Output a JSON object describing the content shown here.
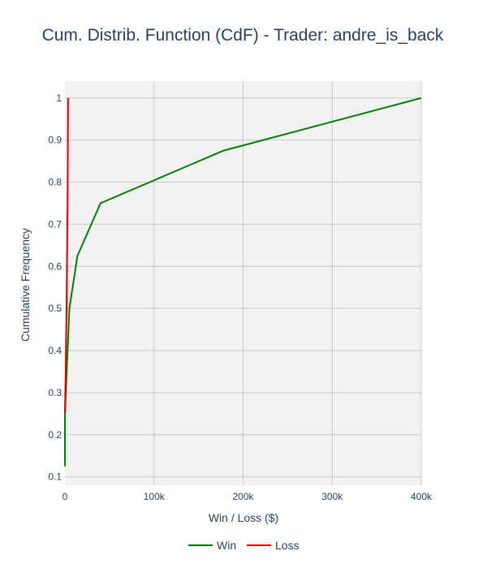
{
  "chart_data": {
    "type": "line",
    "title": "Cum. Distrib. Function (CdF) - Trader: andre_is_back",
    "xlabel": "Win / Loss ($)",
    "ylabel": "Cumulative Frequency",
    "xlim": [
      0,
      400000
    ],
    "ylim": [
      0.08,
      1.04
    ],
    "x_ticks": [
      0,
      100000,
      200000,
      300000,
      400000
    ],
    "x_tick_labels": [
      "0",
      "100k",
      "200k",
      "300k",
      "400k"
    ],
    "y_ticks": [
      0.1,
      0.2,
      0.3,
      0.4,
      0.5,
      0.6,
      0.7,
      0.8,
      0.9,
      1
    ],
    "y_tick_labels": [
      "0.1",
      "0.2",
      "0.3",
      "0.4",
      "0.5",
      "0.6",
      "0.7",
      "0.8",
      "0.9",
      "1"
    ],
    "grid": true,
    "legend_position": "bottom-center",
    "colors": {
      "plot_background": "#f2f2f2",
      "grid": "#c8c8c8",
      "text": "#2a3f5f"
    },
    "series": [
      {
        "name": "Win",
        "color": "#008000",
        "x": [
          0,
          0,
          5000,
          14000,
          40000,
          178000,
          400000
        ],
        "y": [
          0.125,
          0.25,
          0.5,
          0.625,
          0.75,
          0.875,
          1.0
        ]
      },
      {
        "name": "Loss",
        "color": "#e00000",
        "x": [
          0,
          800,
          1800,
          3000,
          3500
        ],
        "y": [
          0.25,
          0.35,
          0.5,
          0.75,
          1.0
        ]
      }
    ]
  }
}
